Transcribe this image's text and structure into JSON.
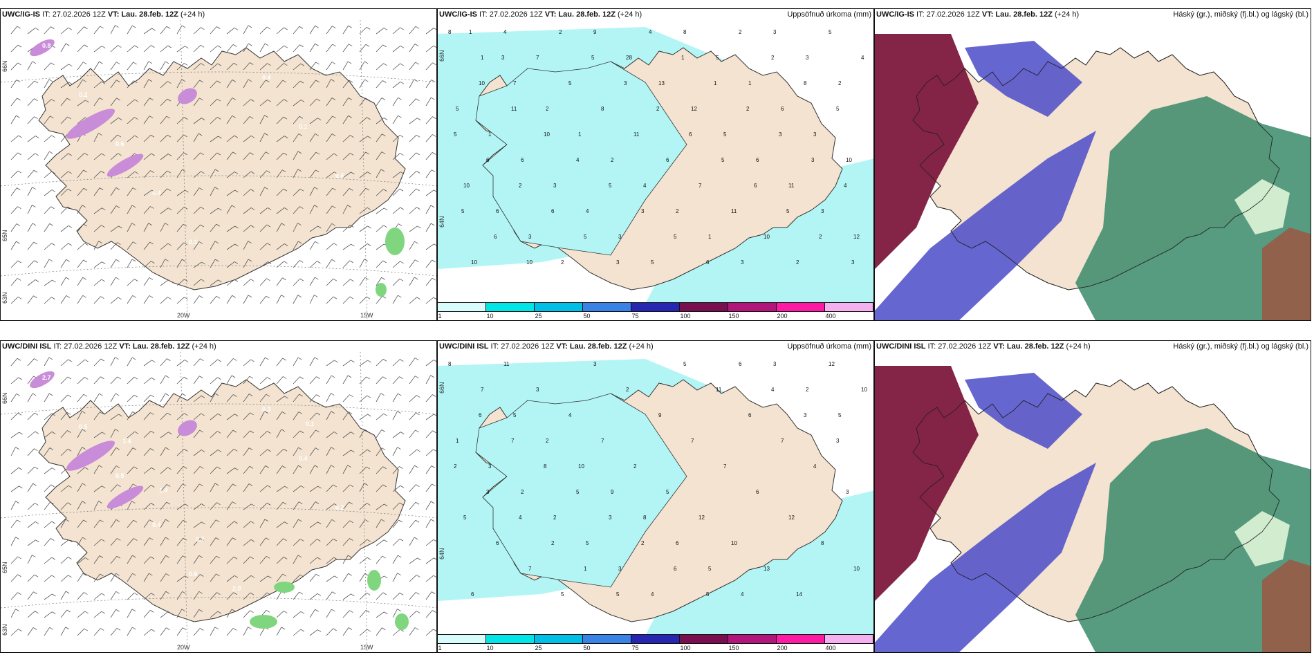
{
  "panels": [
    {
      "id": "p1",
      "type": "wind",
      "prefix": "UWC/IG-IS",
      "it_label": " IT: 27.02.2026 12Z ",
      "vt_label": "VT: Lau. 28.feb. 12Z",
      "suffix": " (+24 h)",
      "right": "",
      "lat_labels": [
        "66N",
        "65N",
        "63N"
      ],
      "lon_labels": [
        "20W",
        "15W"
      ],
      "values": [
        "0.8",
        "0.2",
        "0.6",
        "0.4",
        "0.1",
        "0.2",
        "0.4",
        "0.1",
        "0.6",
        "0.2",
        "0.3"
      ]
    },
    {
      "id": "p2",
      "type": "precip",
      "prefix": "UWC/IG-IS",
      "it_label": " IT: 27.02.2026 12Z ",
      "vt_label": "VT: Lau. 28.feb. 12Z",
      "suffix": " (+24 h)",
      "right": "Uppsöfnuð úrkoma (mm)",
      "lat_labels": [
        "66N",
        "64N"
      ],
      "values": [
        "8",
        "1",
        "7",
        "2",
        "1",
        "2",
        "4",
        "2",
        "1",
        "3",
        "3",
        "3",
        "2",
        "5",
        "1",
        "6",
        "3",
        "4",
        "3",
        "5",
        "8",
        "5",
        "1",
        "6",
        "3",
        "10",
        "10",
        "6",
        "3",
        "2",
        "9",
        "28",
        "13",
        "12",
        "5",
        "6",
        "11",
        "3",
        "12",
        "10",
        "4",
        "7",
        "5",
        "8",
        "11",
        "6",
        "7",
        "11",
        "10",
        "2",
        "5",
        "4",
        "10",
        "11",
        "10",
        "4",
        "5",
        "3",
        "5",
        "6",
        "2",
        "2",
        "8",
        "5",
        "5",
        "6",
        "2",
        "6",
        "5",
        "3",
        "4",
        "1",
        "1",
        "2",
        "3",
        "3",
        "4",
        "5",
        "6",
        "10",
        "2",
        "5",
        "3",
        "2",
        "6",
        "5",
        "6",
        "5",
        "2",
        "3",
        "1",
        "3"
      ]
    },
    {
      "id": "p3",
      "type": "cloud",
      "prefix": "UWC/IG-IS",
      "it_label": " IT: 27.02.2026 12Z ",
      "vt_label": "VT: Lau. 28.feb. 12Z",
      "suffix": " (+24 h)",
      "right": "Háský (gr.), miðský (fj.bl.) og lágský (bl.)"
    },
    {
      "id": "p4",
      "type": "wind",
      "prefix": "UWC/DINI ISL",
      "it_label": " IT: 27.02.2026 12Z ",
      "vt_label": "VT: Lau. 28.feb. 12Z",
      "suffix": " (+24 h)",
      "right": "",
      "lat_labels": [
        "66N",
        "65N",
        "63N"
      ],
      "lon_labels": [
        "20W",
        "15W"
      ],
      "values": [
        "2.7",
        "0.5",
        "0.5",
        "0.4",
        "0.6",
        "0.2",
        "0.3",
        "0.4",
        "0.2",
        "1.1",
        "0.9",
        "2.1",
        "1.4",
        "1.4",
        "0.7",
        "2.0",
        "0.6",
        "0.1"
      ]
    },
    {
      "id": "p5",
      "type": "precip",
      "prefix": "UWC/DINI ISL",
      "it_label": " IT: 27.02.2026 12Z ",
      "vt_label": "VT: Lau. 28.feb. 12Z",
      "suffix": " (+24 h)",
      "right": "Uppsöfnuð úrkoma (mm)",
      "lat_labels": [
        "66N",
        "64N"
      ],
      "values": [
        "8",
        "7",
        "5",
        "2",
        "10",
        "9",
        "8",
        "6",
        "5",
        "4",
        "3",
        "2",
        "5",
        "1",
        "3",
        "2",
        "2",
        "5",
        "3",
        "4",
        "5",
        "11",
        "6",
        "7",
        "4",
        "3",
        "5",
        "6",
        "7",
        "5",
        "3",
        "2",
        "9",
        "7",
        "7",
        "6",
        "12",
        "8",
        "10",
        "6",
        "11",
        "3",
        "4",
        "7",
        "2",
        "5",
        "12",
        "10",
        "13",
        "14",
        "12",
        "10",
        "6",
        "7",
        "8",
        "5",
        "3",
        "2",
        "6",
        "5",
        "6",
        "4",
        "3",
        "3",
        "2",
        "3",
        "4",
        "2",
        "1",
        "5"
      ]
    },
    {
      "id": "p6",
      "type": "cloud",
      "prefix": "UWC/DINI ISL",
      "it_label": " IT: 27.02.2026 12Z ",
      "vt_label": "VT: Lau. 28.feb. 12Z",
      "suffix": " (+24 h)",
      "right": "Háský (gr.), miðský (fj.bl.) og lágský (bl.)"
    }
  ],
  "colorbar": {
    "ticks": [
      "1",
      "10",
      "25",
      "50",
      "75",
      "100",
      "150",
      "200",
      "400"
    ],
    "colors": [
      "#d8fbfb",
      "#00e6e6",
      "#00bfe6",
      "#3b82e6",
      "#2626b3",
      "#7a0f4f",
      "#b3167a",
      "#ff1aa6",
      "#f5b0f0"
    ]
  },
  "colors": {
    "land": "#f3e3d0",
    "wind_field": "#ffffff",
    "precip_light": "#b3f5f5",
    "snow": "#c88cd8",
    "cloud_high": "#3a8a6a",
    "cloud_mid": "#4b4bc8",
    "cloud_low": "#7a1238"
  }
}
